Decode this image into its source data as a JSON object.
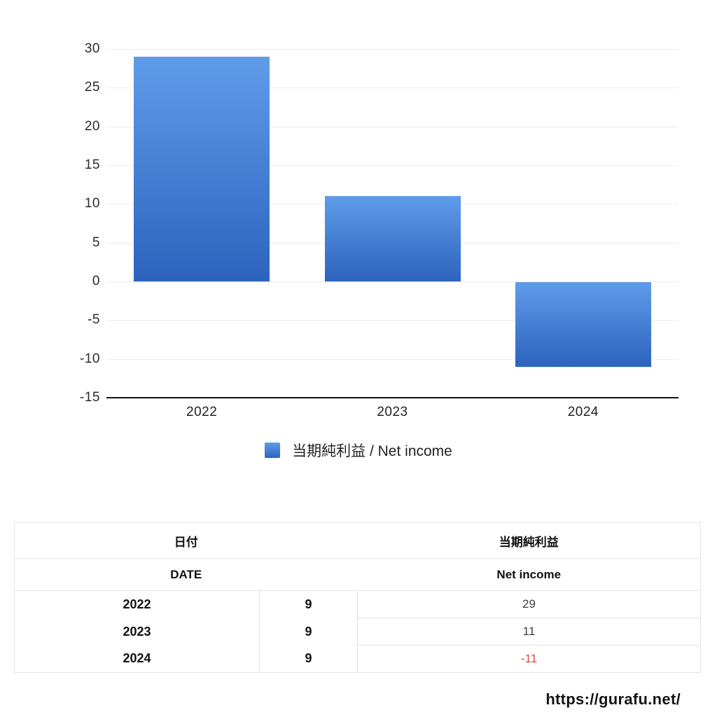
{
  "chart_data": {
    "type": "bar",
    "title": "",
    "xlabel": "",
    "ylabel": "",
    "categories": [
      "2022",
      "2023",
      "2024"
    ],
    "series": [
      {
        "name": "当期純利益 / Net income",
        "values": [
          29,
          11,
          -11
        ]
      }
    ],
    "ylim": [
      -15,
      30
    ],
    "yticks": [
      30,
      25,
      20,
      15,
      10,
      5,
      0,
      -5,
      -10,
      -15
    ],
    "grid": true,
    "legend_position": "bottom",
    "bar_color_top": "#5f9ce9",
    "bar_color_bottom": "#2d63bd",
    "gridline_color": "#ededed",
    "axis_color": "#111111"
  },
  "legend": {
    "label": "当期純利益 / Net income",
    "swatch_color_top": "#5f9ce9",
    "swatch_color_bottom": "#2d63bd"
  },
  "table": {
    "header": {
      "date_ja": "日付",
      "date_en": "DATE",
      "value_ja": "当期純利益",
      "value_en": "Net income"
    },
    "rows": [
      {
        "year": "2022",
        "month": "9",
        "value": "29",
        "negative": false
      },
      {
        "year": "2023",
        "month": "9",
        "value": "11",
        "negative": false
      },
      {
        "year": "2024",
        "month": "9",
        "value": "-11",
        "negative": true
      }
    ],
    "negative_color": "#dc4c3b"
  },
  "footer": {
    "url_caption": "https://gurafu.net/"
  }
}
